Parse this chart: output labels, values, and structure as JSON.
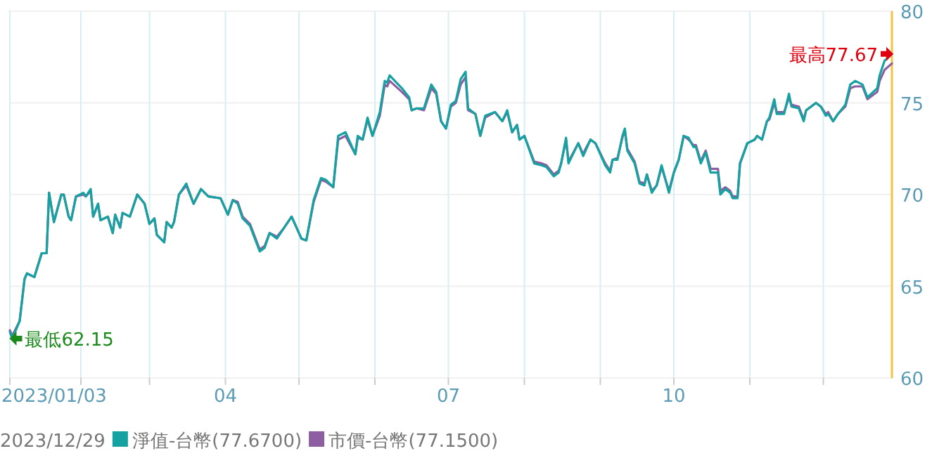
{
  "chart_data": {
    "type": "line",
    "legend_title": "2023/12/29",
    "legend": "bottom",
    "grid": true,
    "xlim": [
      "2023-01-03",
      "2023-12-29"
    ],
    "xticks": [
      {
        "value": "2023-01-03",
        "label": "2023/01/03"
      },
      {
        "value": "2023-02-01",
        "label": null
      },
      {
        "value": "2023-03-01",
        "label": null
      },
      {
        "value": "2023-04-01",
        "label": "04"
      },
      {
        "value": "2023-05-01",
        "label": null
      },
      {
        "value": "2023-06-01",
        "label": null
      },
      {
        "value": "2023-07-01",
        "label": "07"
      },
      {
        "value": "2023-08-01",
        "label": null
      },
      {
        "value": "2023-09-01",
        "label": null
      },
      {
        "value": "2023-10-01",
        "label": "10"
      },
      {
        "value": "2023-11-01",
        "label": null
      },
      {
        "value": "2023-12-01",
        "label": null
      }
    ],
    "ylim": [
      60,
      80
    ],
    "yticks": [
      60,
      65,
      70,
      75,
      80
    ],
    "x": [
      "2023-01-03",
      "2023-01-04",
      "2023-01-07",
      "2023-01-09",
      "2023-01-10",
      "2023-01-13",
      "2023-01-16",
      "2023-01-18",
      "2023-01-19",
      "2023-01-21",
      "2023-01-24",
      "2023-01-25",
      "2023-01-27",
      "2023-01-28",
      "2023-01-30",
      "2023-02-02",
      "2023-02-03",
      "2023-02-05",
      "2023-02-06",
      "2023-02-08",
      "2023-02-09",
      "2023-02-12",
      "2023-02-14",
      "2023-02-15",
      "2023-02-17",
      "2023-02-18",
      "2023-02-21",
      "2023-02-24",
      "2023-02-27",
      "2023-03-01",
      "2023-03-03",
      "2023-03-04",
      "2023-03-07",
      "2023-03-08",
      "2023-03-10",
      "2023-03-11",
      "2023-03-13",
      "2023-03-16",
      "2023-03-19",
      "2023-03-22",
      "2023-03-25",
      "2023-03-30",
      "2023-04-02",
      "2023-04-04",
      "2023-04-06",
      "2023-04-08",
      "2023-04-11",
      "2023-04-15",
      "2023-04-17",
      "2023-04-19",
      "2023-04-22",
      "2023-04-25",
      "2023-04-28",
      "2023-05-02",
      "2023-05-04",
      "2023-05-07",
      "2023-05-10",
      "2023-05-12",
      "2023-05-15",
      "2023-05-17",
      "2023-05-20",
      "2023-05-24",
      "2023-05-25",
      "2023-05-27",
      "2023-05-29",
      "2023-05-31",
      "2023-06-03",
      "2023-06-05",
      "2023-06-06",
      "2023-06-07",
      "2023-06-12",
      "2023-06-15",
      "2023-06-16",
      "2023-06-18",
      "2023-06-21",
      "2023-06-24",
      "2023-06-26",
      "2023-06-28",
      "2023-06-30",
      "2023-07-02",
      "2023-07-04",
      "2023-07-06",
      "2023-07-08",
      "2023-07-09",
      "2023-07-12",
      "2023-07-14",
      "2023-07-16",
      "2023-07-20",
      "2023-07-23",
      "2023-07-25",
      "2023-07-27",
      "2023-07-29",
      "2023-07-30",
      "2023-08-01",
      "2023-08-05",
      "2023-08-08",
      "2023-08-10",
      "2023-08-13",
      "2023-08-15",
      "2023-08-16",
      "2023-08-18",
      "2023-08-19",
      "2023-08-23",
      "2023-08-25",
      "2023-08-26",
      "2023-08-28",
      "2023-08-30",
      "2023-09-03",
      "2023-09-05",
      "2023-09-06",
      "2023-09-08",
      "2023-09-10",
      "2023-09-11",
      "2023-09-12",
      "2023-09-15",
      "2023-09-17",
      "2023-09-19",
      "2023-09-20",
      "2023-09-22",
      "2023-09-24",
      "2023-09-26",
      "2023-09-29",
      "2023-10-01",
      "2023-10-03",
      "2023-10-05",
      "2023-10-07",
      "2023-10-09",
      "2023-10-10",
      "2023-10-12",
      "2023-10-14",
      "2023-10-16",
      "2023-10-19",
      "2023-10-20",
      "2023-10-22",
      "2023-10-24",
      "2023-10-25",
      "2023-10-27",
      "2023-10-28",
      "2023-10-31",
      "2023-11-03",
      "2023-11-04",
      "2023-11-06",
      "2023-11-08",
      "2023-11-09",
      "2023-11-11",
      "2023-11-12",
      "2023-11-15",
      "2023-11-17",
      "2023-11-18",
      "2023-11-21",
      "2023-11-23",
      "2023-11-24",
      "2023-11-28",
      "2023-11-30",
      "2023-12-02",
      "2023-12-03",
      "2023-12-05",
      "2023-12-07",
      "2023-12-10",
      "2023-12-12",
      "2023-12-14",
      "2023-12-17",
      "2023-12-19",
      "2023-12-23",
      "2023-12-24",
      "2023-12-26",
      "2023-12-29"
    ],
    "series": [
      {
        "name": "淨值-台幣(77.6700)",
        "color": "#17a2a2",
        "values": [
          62.5,
          62.15,
          63.1,
          65.4,
          65.7,
          65.5,
          66.8,
          66.8,
          70.1,
          68.5,
          70.0,
          70.0,
          68.8,
          68.6,
          69.9,
          70.1,
          69.9,
          70.3,
          68.8,
          69.5,
          68.6,
          68.8,
          67.9,
          68.9,
          68.2,
          69.0,
          68.8,
          70.0,
          69.5,
          68.4,
          68.7,
          67.8,
          67.4,
          68.5,
          68.2,
          68.5,
          70.0,
          70.6,
          69.5,
          70.3,
          69.9,
          69.8,
          68.9,
          69.7,
          69.5,
          68.7,
          68.3,
          66.9,
          67.1,
          67.9,
          67.6,
          68.2,
          68.8,
          67.6,
          67.5,
          69.7,
          70.9,
          70.8,
          70.4,
          73.2,
          73.4,
          72.2,
          73.2,
          73.0,
          74.2,
          73.2,
          74.5,
          76.2,
          76.1,
          76.5,
          75.8,
          75.3,
          74.6,
          74.7,
          74.7,
          76.0,
          75.6,
          74.0,
          73.6,
          74.9,
          75.1,
          76.3,
          76.7,
          74.7,
          74.4,
          73.2,
          74.3,
          74.5,
          74.0,
          74.6,
          73.4,
          73.8,
          73.0,
          73.2,
          71.7,
          71.6,
          71.5,
          71.0,
          71.2,
          71.7,
          73.1,
          71.7,
          72.8,
          72.1,
          72.4,
          73.0,
          72.8,
          71.6,
          71.2,
          71.9,
          71.9,
          73.2,
          73.6,
          72.4,
          71.7,
          70.6,
          70.5,
          71.1,
          70.1,
          70.5,
          71.6,
          70.1,
          71.2,
          71.9,
          73.2,
          73.1,
          72.6,
          72.6,
          71.7,
          72.3,
          71.2,
          71.2,
          70.0,
          70.3,
          70.1,
          69.8,
          69.8,
          71.7,
          72.8,
          73.0,
          73.2,
          73.0,
          74.0,
          74.2,
          75.2,
          74.4,
          74.4,
          75.5,
          74.8,
          74.7,
          74.0,
          74.6,
          75.0,
          74.8,
          74.3,
          74.4,
          74.0,
          74.4,
          74.9,
          76.0,
          76.2,
          76.0,
          75.3,
          75.8,
          76.5,
          77.3,
          77.67
        ]
      },
      {
        "name": "市價-台幣(77.1500)",
        "color": "#8e5ea2",
        "values": [
          62.6,
          62.3,
          63.1,
          65.4,
          65.7,
          65.5,
          66.8,
          66.8,
          70.1,
          68.5,
          70.0,
          70.0,
          68.8,
          68.6,
          69.9,
          70.0,
          69.9,
          70.2,
          68.8,
          69.5,
          68.6,
          68.8,
          67.9,
          68.9,
          68.2,
          69.0,
          68.8,
          70.0,
          69.5,
          68.4,
          68.7,
          67.8,
          67.4,
          68.5,
          68.2,
          68.5,
          70.0,
          70.5,
          69.5,
          70.3,
          69.9,
          69.8,
          68.9,
          69.7,
          69.6,
          68.8,
          68.4,
          67.0,
          67.2,
          67.9,
          67.7,
          68.2,
          68.8,
          67.6,
          67.5,
          69.6,
          70.8,
          70.7,
          70.4,
          73.0,
          73.2,
          72.2,
          73.1,
          73.0,
          74.1,
          73.2,
          74.3,
          76.0,
          75.9,
          76.2,
          75.6,
          75.2,
          74.6,
          74.7,
          74.6,
          75.8,
          75.5,
          74.0,
          73.6,
          74.8,
          75.0,
          76.0,
          76.4,
          74.6,
          74.4,
          73.2,
          74.2,
          74.5,
          74.0,
          74.5,
          73.4,
          73.8,
          73.0,
          73.2,
          71.8,
          71.7,
          71.6,
          71.1,
          71.3,
          71.7,
          73.0,
          71.8,
          72.8,
          72.2,
          72.5,
          73.0,
          72.8,
          71.7,
          71.3,
          71.9,
          72.0,
          73.1,
          73.5,
          72.5,
          71.8,
          70.7,
          70.6,
          71.1,
          70.2,
          70.5,
          71.5,
          70.2,
          71.2,
          71.9,
          73.2,
          73.0,
          72.7,
          72.7,
          71.8,
          72.4,
          71.4,
          71.4,
          70.2,
          70.4,
          70.2,
          69.9,
          69.9,
          71.7,
          72.8,
          73.0,
          73.2,
          73.0,
          74.0,
          74.1,
          75.0,
          74.5,
          74.5,
          75.3,
          74.9,
          74.8,
          74.1,
          74.6,
          75.0,
          74.8,
          74.4,
          74.5,
          74.0,
          74.4,
          74.8,
          75.8,
          75.9,
          75.9,
          75.2,
          75.6,
          76.2,
          76.8,
          77.15
        ]
      }
    ],
    "annotations": [
      {
        "text": "最高77.67",
        "x": "2023-12-29",
        "y": 77.67
      },
      {
        "text": "最低62.15",
        "x": "2023-01-04",
        "y": 62.15
      }
    ]
  }
}
